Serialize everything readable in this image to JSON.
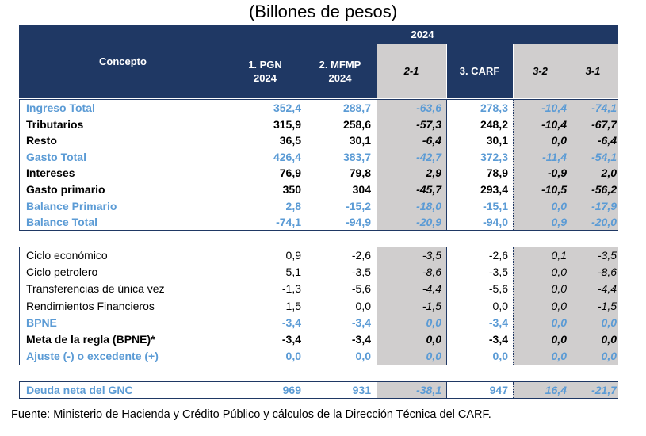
{
  "title": "(Billones de pesos)",
  "header": {
    "concepto": "Concepto",
    "year": "2024",
    "col_pgn": "1. PGN",
    "col_pgn_year": "2024",
    "col_mfmp": "2. MFMP",
    "col_mfmp_year": "2024",
    "col_21": "2-1",
    "col_carf": "3. CARF",
    "col_32": "3-2",
    "col_31": "3-1"
  },
  "block1": [
    {
      "label": "Ingreso Total",
      "pgn": "352,4",
      "mfmp": "288,7",
      "d21": "-63,6",
      "carf": "278,3",
      "d32": "-10,4",
      "d31": "-74,1"
    },
    {
      "label": "Tributarios",
      "pgn": "315,9",
      "mfmp": "258,6",
      "d21": "-57,3",
      "carf": "248,2",
      "d32": "-10,4",
      "d31": "-67,7"
    },
    {
      "label": "Resto",
      "pgn": "36,5",
      "mfmp": "30,1",
      "d21": "-6,4",
      "carf": "30,1",
      "d32": "0,0",
      "d31": "-6,4"
    },
    {
      "label": "Gasto Total",
      "pgn": "426,4",
      "mfmp": "383,7",
      "d21": "-42,7",
      "carf": "372,3",
      "d32": "-11,4",
      "d31": "-54,1"
    },
    {
      "label": "Intereses",
      "pgn": "76,9",
      "mfmp": "79,8",
      "d21": "2,9",
      "carf": "78,9",
      "d32": "-0,9",
      "d31": "2,0"
    },
    {
      "label": "Gasto primario",
      "pgn": "350",
      "mfmp": "304",
      "d21": "-45,7",
      "carf": "293,4",
      "d32": "-10,5",
      "d31": "-56,2"
    },
    {
      "label": "Balance Primario",
      "pgn": "2,8",
      "mfmp": "-15,2",
      "d21": "-18,0",
      "carf": "-15,1",
      "d32": "0,0",
      "d31": "-17,9"
    },
    {
      "label": "Balance Total",
      "pgn": "-74,1",
      "mfmp": "-94,9",
      "d21": "-20,9",
      "carf": "-94,0",
      "d32": "0,9",
      "d31": "-20,0"
    }
  ],
  "block2": [
    {
      "label": "Ciclo económico",
      "pgn": "0,9",
      "mfmp": "-2,6",
      "d21": "-3,5",
      "carf": "-2,6",
      "d32": "0,1",
      "d31": "-3,5"
    },
    {
      "label": "Ciclo petrolero",
      "pgn": "5,1",
      "mfmp": "-3,5",
      "d21": "-8,6",
      "carf": "-3,5",
      "d32": "0,0",
      "d31": "-8,6"
    },
    {
      "label": "Transferencias de única vez",
      "pgn": "-1,3",
      "mfmp": "-5,6",
      "d21": "-4,4",
      "carf": "-5,6",
      "d32": "0,0",
      "d31": "-4,4"
    },
    {
      "label": "Rendimientos Financieros",
      "pgn": "1,5",
      "mfmp": "0,0",
      "d21": "-1,5",
      "carf": "0,0",
      "d32": "0,0",
      "d31": "-1,5"
    },
    {
      "label": "BPNE",
      "pgn": "-3,4",
      "mfmp": "-3,4",
      "d21": "0,0",
      "carf": "-3,4",
      "d32": "0,0",
      "d31": "0,0"
    },
    {
      "label": "Meta de la regla (BPNE)*",
      "pgn": "-3,4",
      "mfmp": "-3,4",
      "d21": "0,0",
      "carf": "-3,4",
      "d32": "0,0",
      "d31": "0,0"
    },
    {
      "label": "Ajuste (-) o excedente (+)",
      "pgn": "0,0",
      "mfmp": "0,0",
      "d21": "0,0",
      "carf": "0,0",
      "d32": "0,0",
      "d31": "0,0"
    }
  ],
  "block3": [
    {
      "label": "Deuda neta del GNC",
      "pgn": "969",
      "mfmp": "931",
      "d21": "-38,1",
      "carf": "947",
      "d32": "16,4",
      "d31": "-21,7"
    }
  ],
  "footer": "Fuente: Ministerio de Hacienda y Crédito Público y cálculos de la Dirección Técnica del CARF."
}
